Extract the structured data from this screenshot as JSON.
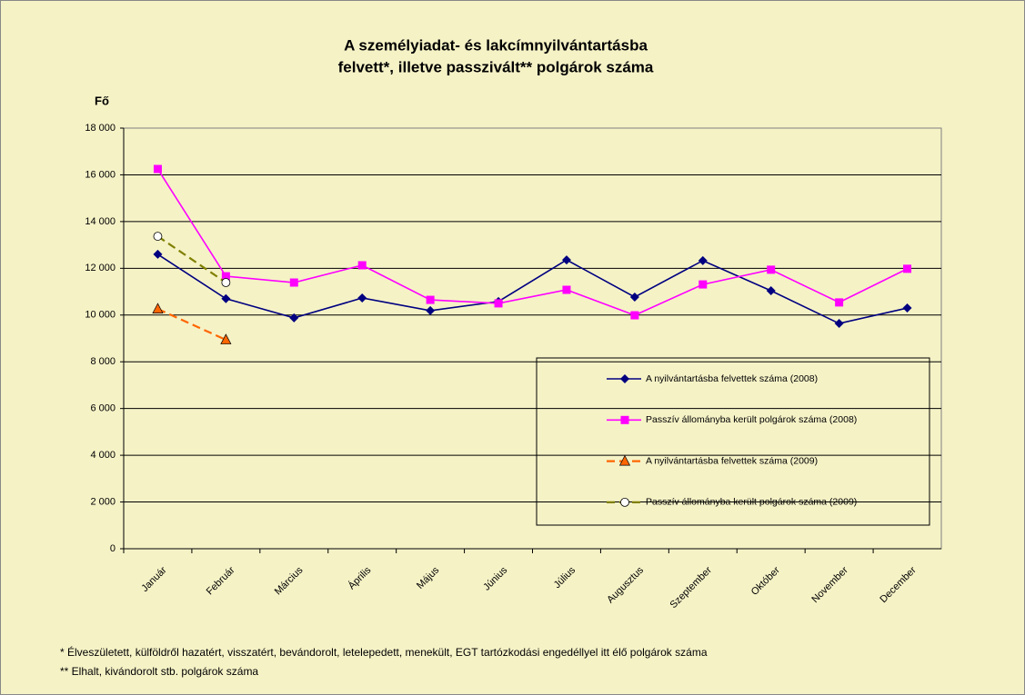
{
  "chart_data": {
    "type": "line",
    "title": [
      "A személyiadat- és lakcímnyilvántartásba",
      "felvett*, illetve passzivált** polgárok száma"
    ],
    "y_label": "Fő",
    "categories": [
      "Január",
      "Február",
      "Március",
      "Április",
      "Május",
      "Június",
      "Július",
      "Augusztus",
      "Szeptember",
      "Október",
      "November",
      "December"
    ],
    "series": [
      {
        "name": "A nyilvántartásba felvettek száma (2008)",
        "color": "#000080",
        "marker": "diamond",
        "dash": false,
        "values": [
          12600,
          10700,
          9880,
          10730,
          10190,
          10580,
          12360,
          10770,
          12330,
          11040,
          9640,
          10300
        ]
      },
      {
        "name": "Passzív állományba került polgárok száma (2008)",
        "color": "#ff00ff",
        "marker": "square",
        "dash": false,
        "values": [
          16250,
          11660,
          11390,
          12130,
          10650,
          10500,
          11080,
          9990,
          11310,
          11940,
          10540,
          11980
        ]
      },
      {
        "name": "A nyilvántartásba felvettek száma (2009)",
        "color": "#ff6600",
        "marker": "triangle",
        "dash": true,
        "values": [
          10260,
          8940,
          null,
          null,
          null,
          null,
          null,
          null,
          null,
          null,
          null,
          null
        ]
      },
      {
        "name": "Passzív állományba került polgárok száma (2009)",
        "color": "#808000",
        "marker": "circle",
        "dash": true,
        "values": [
          13370,
          11390,
          null,
          null,
          null,
          null,
          null,
          null,
          null,
          null,
          null,
          null
        ]
      }
    ],
    "ylim": [
      0,
      18000
    ],
    "yticks": [
      0,
      {
        "value": 2000,
        "label": "2 000"
      },
      {
        "value": 4000,
        "label": "4 000"
      },
      {
        "value": 6000,
        "label": "6 000"
      },
      {
        "value": 8000,
        "label": "8 000"
      },
      {
        "value": 10000,
        "label": "10 000"
      },
      {
        "value": 12000,
        "label": "12 000"
      },
      {
        "value": 14000,
        "label": "14 000"
      },
      {
        "value": 16000,
        "label": "16 000"
      },
      {
        "value": 18000,
        "label": "18 000"
      }
    ],
    "grid": true,
    "footnotes": [
      "* Élveszületett, külföldről hazatért, visszatért, bevándorolt, letelepedett, menekült, EGT tartózkodási engedéllyel itt élő  polgárok száma",
      "** Elhalt, kivándorolt stb. polgárok száma"
    ]
  }
}
